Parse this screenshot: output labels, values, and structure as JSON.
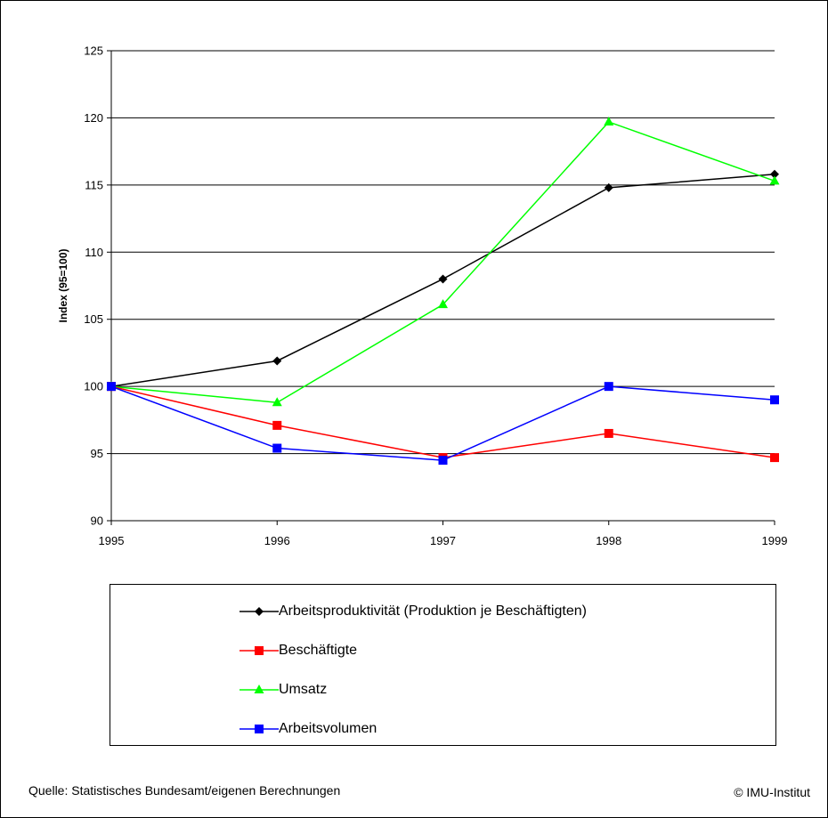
{
  "chart_data": {
    "type": "line",
    "title": "",
    "xlabel": "",
    "ylabel": "Index (95=100)",
    "x": [
      "1995",
      "1996",
      "1997",
      "1998",
      "1999"
    ],
    "ylim": [
      90,
      125
    ],
    "yticks": [
      90,
      95,
      100,
      105,
      110,
      115,
      120,
      125
    ],
    "grid": true,
    "legend_position": "bottom",
    "series": [
      {
        "name": "Arbeitsproduktivität (Produktion je Beschäftigten)",
        "color": "#000000",
        "marker": "diamond",
        "values": [
          100,
          101.9,
          108.0,
          114.8,
          115.8
        ]
      },
      {
        "name": "Beschäftigte",
        "color": "#ff0000",
        "marker": "square",
        "values": [
          100,
          97.1,
          94.7,
          96.5,
          94.7
        ]
      },
      {
        "name": "Umsatz",
        "color": "#00ff00",
        "marker": "triangle",
        "values": [
          100,
          98.8,
          106.1,
          119.7,
          115.3
        ]
      },
      {
        "name": "Arbeitsvolumen",
        "color": "#0000ff",
        "marker": "square",
        "values": [
          100,
          95.4,
          94.5,
          100.0,
          99.0
        ]
      }
    ]
  },
  "footer": {
    "source": "Quelle: Statistisches Bundesamt/eigenen Berechnungen",
    "copyright": "© IMU-Institut"
  }
}
